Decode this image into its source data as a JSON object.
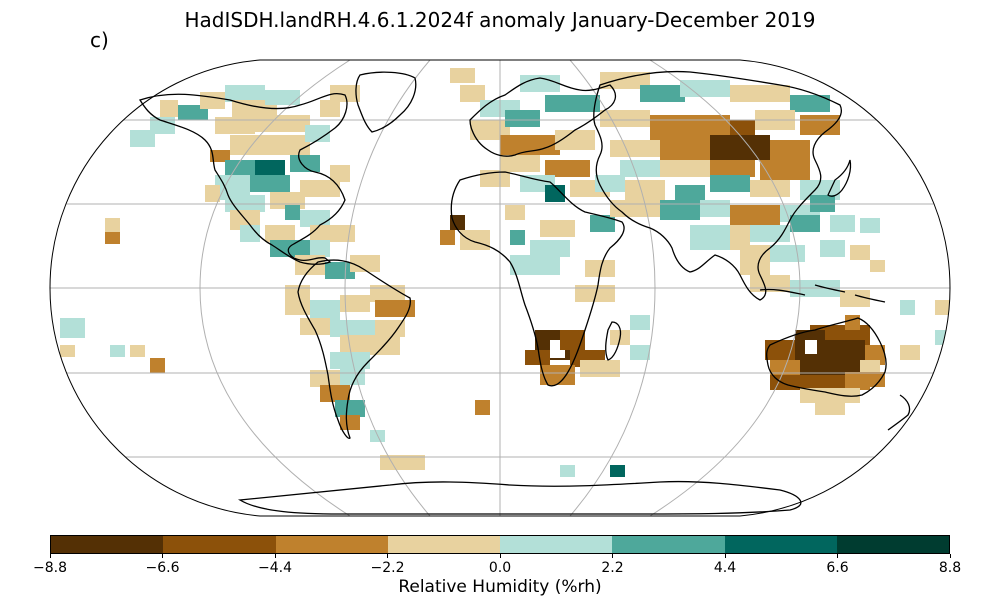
{
  "title": "HadISDH.landRH.4.6.1.2024f anomaly January-December 2019",
  "panel_label": "c)",
  "colorbar": {
    "label": "Relative Humidity (%rh)",
    "ticks": [
      "−8.8",
      "−6.6",
      "−4.4",
      "−2.2",
      "0.0",
      "2.2",
      "4.4",
      "6.6",
      "8.8"
    ],
    "colors": [
      "#543005",
      "#8c510a",
      "#bf812d",
      "#e8d29f",
      "#b3e0d8",
      "#4ea89b",
      "#01665e",
      "#003c30"
    ]
  },
  "map": {
    "projection": "Robinson",
    "gridlines": true,
    "colors": {
      "coast": "#000000",
      "grid": "#b0b0b0",
      "border": "#000000"
    }
  }
}
